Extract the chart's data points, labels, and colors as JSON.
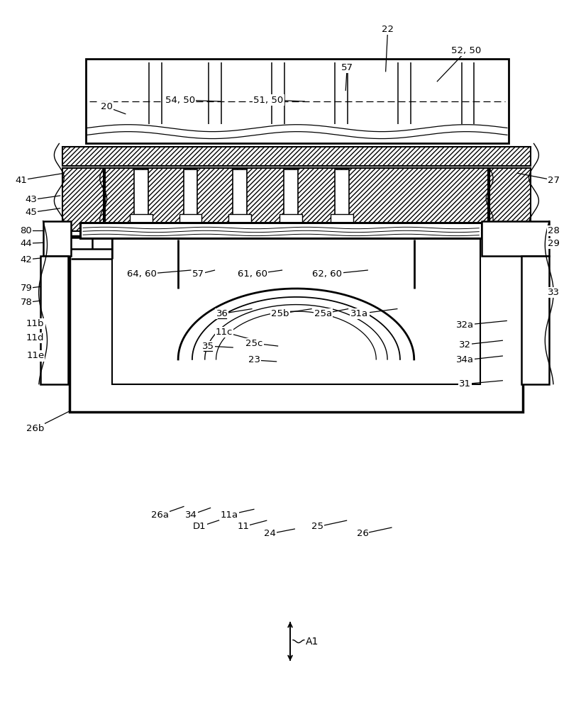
{
  "bg": "#ffffff",
  "lc": "#000000",
  "fig_w": 8.19,
  "fig_h": 10.0,
  "dpi": 100,
  "labels": [
    [
      "22",
      548,
      962,
      545,
      902,
      false
    ],
    [
      "52, 50",
      660,
      932,
      618,
      888,
      false
    ],
    [
      "57",
      490,
      908,
      488,
      875,
      false
    ],
    [
      "20",
      148,
      852,
      175,
      842,
      false
    ],
    [
      "54, 50",
      252,
      862,
      310,
      860,
      false
    ],
    [
      "51, 50",
      378,
      862,
      430,
      860,
      false
    ],
    [
      "41",
      26,
      748,
      88,
      758,
      false
    ],
    [
      "27",
      784,
      748,
      732,
      758,
      false
    ],
    [
      "43",
      40,
      720,
      82,
      726,
      false
    ],
    [
      "45",
      40,
      702,
      82,
      708,
      false
    ],
    [
      "80",
      33,
      676,
      82,
      676,
      false
    ],
    [
      "44",
      33,
      658,
      82,
      660,
      false
    ],
    [
      "28",
      784,
      676,
      732,
      686,
      false
    ],
    [
      "29",
      784,
      658,
      732,
      662,
      false
    ],
    [
      "42",
      33,
      635,
      82,
      640,
      false
    ],
    [
      "64, 60",
      198,
      614,
      268,
      620,
      false
    ],
    [
      "57",
      278,
      614,
      302,
      620,
      false
    ],
    [
      "61, 60",
      355,
      614,
      398,
      620,
      false
    ],
    [
      "62, 60",
      462,
      614,
      520,
      620,
      false
    ],
    [
      "79",
      33,
      594,
      82,
      600,
      false
    ],
    [
      "78",
      33,
      574,
      82,
      580,
      false
    ],
    [
      "33",
      784,
      588,
      750,
      592,
      false
    ],
    [
      "36",
      312,
      558,
      355,
      565,
      true
    ],
    [
      "25b",
      395,
      558,
      440,
      565,
      false
    ],
    [
      "25a",
      456,
      558,
      492,
      565,
      false
    ],
    [
      "31a",
      508,
      558,
      562,
      565,
      false
    ],
    [
      "32a",
      658,
      542,
      718,
      548,
      false
    ],
    [
      "11b",
      46,
      544,
      92,
      550,
      false
    ],
    [
      "11c",
      315,
      532,
      352,
      522,
      false
    ],
    [
      "35",
      292,
      512,
      328,
      510,
      true
    ],
    [
      "25c",
      358,
      516,
      392,
      512,
      false
    ],
    [
      "23",
      358,
      492,
      390,
      490,
      false
    ],
    [
      "11d",
      46,
      524,
      92,
      528,
      false
    ],
    [
      "11e",
      46,
      498,
      92,
      500,
      false
    ],
    [
      "32",
      658,
      514,
      712,
      520,
      false
    ],
    [
      "34a",
      658,
      492,
      712,
      498,
      false
    ],
    [
      "31",
      658,
      458,
      712,
      463,
      false
    ],
    [
      "26b",
      46,
      395,
      96,
      420,
      false
    ],
    [
      "26a",
      224,
      272,
      258,
      284,
      false
    ],
    [
      "34",
      268,
      272,
      296,
      282,
      false
    ],
    [
      "D1",
      280,
      255,
      310,
      265,
      false
    ],
    [
      "11a",
      322,
      272,
      358,
      280,
      false
    ],
    [
      "11",
      342,
      255,
      376,
      264,
      false
    ],
    [
      "24",
      380,
      245,
      416,
      252,
      false
    ],
    [
      "25",
      448,
      255,
      490,
      264,
      false
    ],
    [
      "26",
      512,
      245,
      554,
      254,
      false
    ]
  ]
}
